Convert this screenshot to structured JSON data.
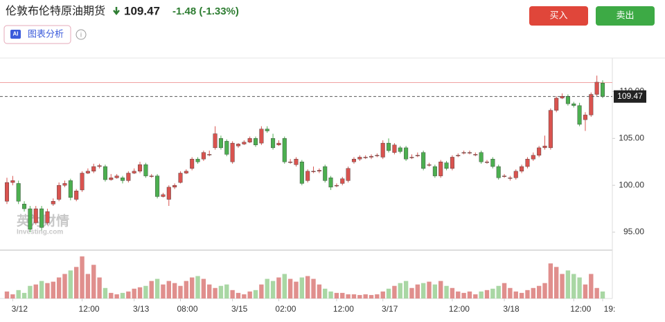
{
  "header": {
    "title": "伦敦布伦特原油期货",
    "price": "109.47",
    "change": "-1.48 (-1.33%)",
    "ai_button": "图表分析",
    "ai_badge": "AI",
    "buy": "买入",
    "sell": "卖出"
  },
  "chart_data": {
    "type": "candlestick",
    "watermark": {
      "brand": "英为财情",
      "site": "Investing.com"
    },
    "categories": [
      null,
      "3/12",
      null,
      null,
      null,
      null,
      null,
      null,
      null,
      null,
      null,
      null,
      null,
      "12:00",
      null,
      null,
      null,
      null,
      null,
      null,
      null,
      null,
      "3/13",
      null,
      null,
      null,
      null,
      null,
      null,
      null,
      "08:00",
      null,
      null,
      null,
      null,
      null,
      null,
      null,
      null,
      "3/15",
      null,
      null,
      null,
      null,
      null,
      null,
      null,
      "02:00",
      null,
      null,
      null,
      null,
      null,
      null,
      null,
      null,
      null,
      "12:00",
      null,
      null,
      null,
      null,
      null,
      null,
      null,
      "3/17",
      null,
      null,
      null,
      null,
      null,
      null,
      null,
      null,
      null,
      null,
      null,
      "12:00",
      null,
      null,
      null,
      null,
      null,
      null,
      null,
      null,
      "3/18",
      null,
      null,
      null,
      null,
      null,
      null,
      null,
      null,
      null,
      null,
      null,
      "12:00",
      null,
      null,
      null,
      null,
      "19:"
    ],
    "open": [
      98.3,
      100.3,
      100.2,
      98.0,
      97.5,
      96.0,
      97.5,
      96.0,
      98.0,
      98.5,
      100.0,
      100.5,
      98.5,
      99.5,
      101.3,
      101.5,
      102.0,
      102.0,
      100.6,
      100.8,
      100.8,
      100.5,
      101.3,
      101.5,
      102.2,
      101.0,
      101.0,
      98.8,
      98.5,
      99.8,
      100.3,
      101.3,
      101.8,
      102.8,
      102.8,
      103.3,
      104.0,
      105.0,
      104.7,
      102.5,
      104.2,
      104.4,
      104.6,
      105.0,
      104.5,
      106.0,
      105.0,
      104.3,
      105.0,
      102.5,
      102.2,
      102.5,
      100.5,
      101.5,
      101.5,
      102.0,
      100.8,
      100.0,
      100.2,
      100.5,
      102.5,
      102.8,
      103.0,
      103.0,
      103.2,
      103.0,
      104.5,
      103.5,
      104.0,
      104.0,
      103.0,
      103.2,
      103.5,
      102.2,
      102.0,
      101.0,
      102.4,
      101.8,
      103.2,
      103.5,
      103.5,
      103.3,
      103.5,
      102.5,
      102.8,
      102.0,
      101.0,
      100.8,
      100.8,
      101.5,
      102.0,
      102.8,
      103.2,
      104.0,
      104.0,
      108.0,
      109.3,
      109.5,
      108.7,
      108.5,
      107.0,
      107.5,
      109.7,
      110.9
    ],
    "high": [
      100.8,
      101.0,
      100.5,
      98.3,
      97.8,
      97.8,
      97.8,
      97.5,
      98.6,
      100.3,
      100.5,
      100.7,
      99.6,
      101.5,
      101.8,
      102.3,
      102.3,
      102.2,
      101.2,
      101.2,
      101.0,
      101.5,
      101.8,
      102.5,
      102.4,
      101.2,
      101.2,
      99.2,
      100.0,
      100.2,
      101.5,
      101.7,
      103.0,
      103.0,
      103.7,
      103.7,
      106.3,
      105.3,
      104.9,
      104.7,
      104.5,
      104.8,
      105.2,
      105.2,
      106.3,
      106.3,
      105.5,
      104.8,
      105.2,
      102.8,
      103.0,
      102.7,
      101.7,
      102.0,
      101.8,
      102.2,
      101.0,
      100.2,
      100.9,
      102.0,
      103.0,
      103.2,
      103.2,
      103.3,
      103.4,
      104.8,
      105.0,
      104.5,
      104.2,
      104.2,
      103.3,
      103.5,
      103.7,
      102.4,
      102.2,
      102.7,
      102.6,
      103.2,
      103.4,
      103.7,
      103.7,
      103.5,
      103.7,
      102.7,
      103.0,
      102.2,
      101.2,
      101.0,
      101.7,
      102.2,
      103.0,
      103.5,
      104.2,
      105.3,
      108.2,
      109.5,
      109.8,
      109.7,
      108.9,
      108.8,
      107.8,
      109.9,
      111.7,
      111.2
    ],
    "low": [
      98.0,
      100.0,
      98.0,
      97.2,
      95.0,
      95.8,
      95.2,
      95.8,
      97.8,
      98.3,
      99.8,
      98.4,
      98.3,
      99.3,
      101.2,
      101.3,
      101.8,
      100.4,
      100.5,
      100.7,
      100.2,
      100.3,
      101.2,
      101.3,
      100.8,
      100.8,
      98.6,
      98.7,
      97.8,
      99.6,
      100.2,
      101.2,
      101.6,
      102.3,
      102.6,
      103.1,
      103.8,
      103.8,
      103.1,
      102.3,
      104.0,
      104.3,
      104.5,
      104.1,
      104.3,
      105.6,
      103.8,
      104.2,
      102.3,
      102.3,
      102.0,
      100.0,
      100.3,
      101.3,
      101.3,
      100.3,
      99.5,
      99.8,
      100.0,
      100.3,
      102.3,
      102.6,
      102.8,
      102.8,
      103.0,
      102.8,
      103.5,
      103.3,
      103.4,
      102.6,
      102.8,
      103.0,
      101.6,
      102.0,
      100.8,
      100.8,
      101.6,
      101.6,
      103.0,
      103.3,
      103.3,
      103.1,
      102.3,
      102.3,
      101.8,
      100.6,
      100.8,
      100.5,
      100.6,
      101.3,
      101.8,
      102.6,
      103.0,
      103.8,
      103.8,
      107.8,
      109.2,
      108.5,
      108.3,
      106.3,
      105.8,
      107.3,
      109.5,
      109.3
    ],
    "close": [
      100.3,
      100.5,
      98.3,
      97.5,
      95.3,
      97.5,
      95.5,
      97.2,
      98.3,
      100.0,
      100.2,
      98.7,
      99.4,
      101.3,
      101.5,
      102.0,
      102.1,
      100.6,
      100.8,
      101.0,
      100.5,
      101.3,
      101.5,
      102.2,
      101.0,
      101.0,
      98.8,
      99.0,
      99.8,
      100.0,
      101.3,
      101.5,
      102.8,
      102.5,
      103.5,
      103.3,
      105.5,
      104.0,
      103.3,
      104.5,
      104.4,
      104.6,
      105.0,
      104.3,
      106.0,
      105.8,
      104.0,
      104.5,
      102.5,
      102.5,
      102.8,
      100.2,
      101.5,
      101.5,
      101.6,
      100.5,
      99.8,
      100.0,
      100.7,
      101.8,
      102.8,
      103.0,
      103.0,
      103.1,
      103.2,
      104.5,
      103.7,
      104.3,
      103.6,
      102.8,
      103.0,
      103.2,
      101.8,
      102.2,
      101.0,
      102.5,
      101.8,
      103.0,
      103.2,
      103.5,
      103.5,
      103.3,
      102.5,
      102.5,
      102.0,
      100.8,
      101.0,
      100.8,
      101.5,
      102.0,
      102.8,
      103.2,
      104.0,
      104.2,
      108.0,
      109.3,
      109.5,
      108.7,
      108.5,
      106.5,
      107.5,
      109.7,
      111.0,
      109.47
    ],
    "volume": [
      10,
      6,
      12,
      8,
      18,
      20,
      25,
      22,
      24,
      30,
      35,
      40,
      45,
      60,
      35,
      48,
      30,
      15,
      8,
      6,
      8,
      10,
      14,
      16,
      18,
      25,
      28,
      20,
      25,
      22,
      18,
      25,
      30,
      32,
      28,
      20,
      15,
      18,
      20,
      12,
      8,
      6,
      10,
      12,
      20,
      28,
      25,
      30,
      35,
      28,
      24,
      30,
      32,
      28,
      20,
      14,
      10,
      8,
      8,
      6,
      6,
      5,
      6,
      5,
      6,
      10,
      14,
      18,
      22,
      25,
      15,
      20,
      22,
      24,
      20,
      25,
      18,
      15,
      10,
      8,
      10,
      6,
      10,
      12,
      14,
      18,
      22,
      15,
      10,
      8,
      12,
      15,
      18,
      22,
      50,
      45,
      35,
      40,
      35,
      30,
      20,
      35,
      15,
      10
    ],
    "ylim": [
      93.6,
      113.5
    ],
    "yticks": [
      {
        "value": 95,
        "label": "95.00"
      },
      {
        "value": 100,
        "label": "100.00"
      },
      {
        "value": 105,
        "label": "105.00"
      },
      {
        "value": 110,
        "label": "110.00"
      }
    ],
    "volume_ylim": [
      0,
      65
    ],
    "up_color": "#d9534f",
    "down_color": "#4caf50",
    "volume_up_color": "#e08f8d",
    "volume_down_color": "#a9d7a4",
    "last_price": 109.47,
    "reference_line": 110.96
  }
}
